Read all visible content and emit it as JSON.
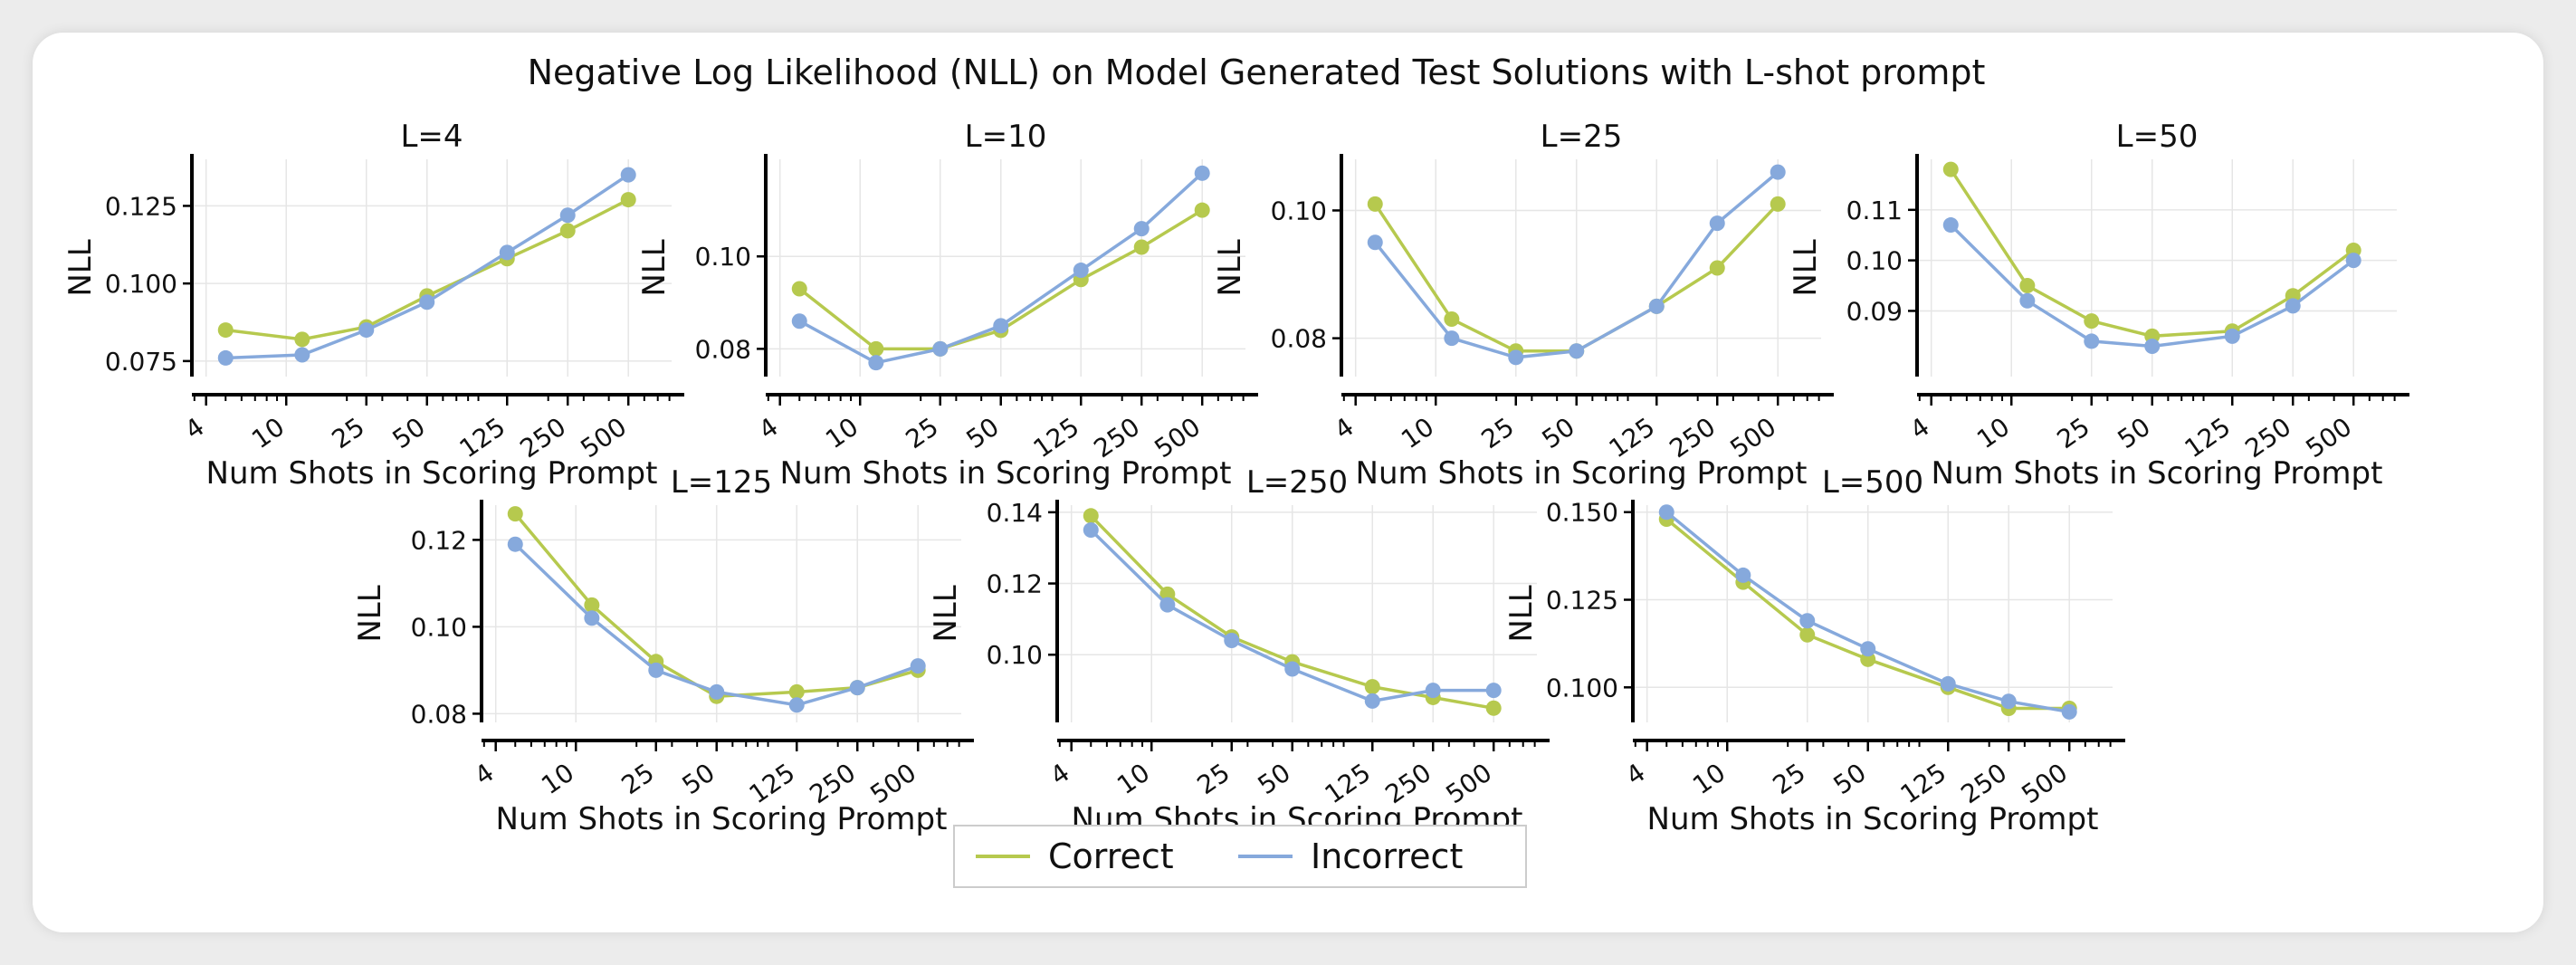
{
  "colors": {
    "correct": "#b6c94e",
    "incorrect": "#86a9dc",
    "grid": "#e6e6e6",
    "axis": "#000000"
  },
  "suptitle": "Negative Log Likelihood (NLL) on Model Generated Test Solutions with L-shot prompt",
  "legend": {
    "placement": "bottom-center",
    "entries": [
      "Correct",
      "Incorrect"
    ]
  },
  "chart_data": [
    {
      "type": "line",
      "title": "L=4",
      "xlabel": "Num Shots in Scoring Prompt",
      "ylabel": "NLL",
      "xscale": "log",
      "xticks": [
        4,
        10,
        25,
        50,
        125,
        250,
        500
      ],
      "xlim": [
        3.4,
        820
      ],
      "ylim": [
        0.07,
        0.14
      ],
      "yticks": [
        0.075,
        0.1,
        0.125
      ],
      "ytick_labels": [
        "0.075",
        "0.100",
        "0.125"
      ],
      "x": [
        5,
        12,
        25,
        50,
        125,
        250,
        500
      ],
      "series": [
        {
          "name": "Correct",
          "values": [
            0.085,
            0.082,
            0.086,
            0.096,
            0.108,
            0.117,
            0.127
          ]
        },
        {
          "name": "Incorrect",
          "values": [
            0.076,
            0.077,
            0.085,
            0.094,
            0.11,
            0.122,
            0.135
          ]
        }
      ],
      "grid": true
    },
    {
      "type": "line",
      "title": "L=10",
      "xlabel": "Num Shots in Scoring Prompt",
      "ylabel": "NLL",
      "xscale": "log",
      "xticks": [
        4,
        10,
        25,
        50,
        125,
        250,
        500
      ],
      "xlim": [
        3.4,
        820
      ],
      "ylim": [
        0.074,
        0.121
      ],
      "yticks": [
        0.08,
        0.1
      ],
      "ytick_labels": [
        "0.08",
        "0.10"
      ],
      "x": [
        5,
        12,
        25,
        50,
        125,
        250,
        500
      ],
      "series": [
        {
          "name": "Correct",
          "values": [
            0.093,
            0.08,
            0.08,
            0.084,
            0.095,
            0.102,
            0.11
          ]
        },
        {
          "name": "Incorrect",
          "values": [
            0.086,
            0.077,
            0.08,
            0.085,
            0.097,
            0.106,
            0.118
          ]
        }
      ],
      "grid": true
    },
    {
      "type": "line",
      "title": "L=25",
      "xlabel": "Num Shots in Scoring Prompt",
      "ylabel": "NLL",
      "xscale": "log",
      "xticks": [
        4,
        10,
        25,
        50,
        125,
        250,
        500
      ],
      "xlim": [
        3.4,
        820
      ],
      "ylim": [
        0.074,
        0.108
      ],
      "yticks": [
        0.08,
        0.1
      ],
      "ytick_labels": [
        "0.08",
        "0.10"
      ],
      "x": [
        5,
        12,
        25,
        50,
        125,
        250,
        500
      ],
      "series": [
        {
          "name": "Correct",
          "values": [
            0.101,
            0.083,
            0.078,
            0.078,
            0.085,
            0.091,
            0.101
          ]
        },
        {
          "name": "Incorrect",
          "values": [
            0.095,
            0.08,
            0.077,
            0.078,
            0.085,
            0.098,
            0.106
          ]
        }
      ],
      "grid": true
    },
    {
      "type": "line",
      "title": "L=50",
      "xlabel": "Num Shots in Scoring Prompt",
      "ylabel": "NLL",
      "xscale": "log",
      "xticks": [
        4,
        10,
        25,
        50,
        125,
        250,
        500
      ],
      "xlim": [
        3.4,
        820
      ],
      "ylim": [
        0.077,
        0.12
      ],
      "yticks": [
        0.09,
        0.1,
        0.11
      ],
      "ytick_labels": [
        "0.09",
        "0.10",
        "0.11"
      ],
      "x": [
        5,
        12,
        25,
        50,
        125,
        250,
        500
      ],
      "series": [
        {
          "name": "Correct",
          "values": [
            0.118,
            0.095,
            0.088,
            0.085,
            0.086,
            0.093,
            0.102
          ]
        },
        {
          "name": "Incorrect",
          "values": [
            0.107,
            0.092,
            0.084,
            0.083,
            0.085,
            0.091,
            0.1
          ]
        }
      ],
      "grid": true
    },
    {
      "type": "line",
      "title": "L=125",
      "xlabel": "Num Shots in Scoring Prompt",
      "ylabel": "NLL",
      "xscale": "log",
      "xticks": [
        4,
        10,
        25,
        50,
        125,
        250,
        500
      ],
      "xlim": [
        3.4,
        820
      ],
      "ylim": [
        0.078,
        0.128
      ],
      "yticks": [
        0.08,
        0.1,
        0.12
      ],
      "ytick_labels": [
        "0.08",
        "0.10",
        "0.12"
      ],
      "x": [
        5,
        12,
        25,
        50,
        125,
        250,
        500
      ],
      "series": [
        {
          "name": "Correct",
          "values": [
            0.126,
            0.105,
            0.092,
            0.084,
            0.085,
            0.086,
            0.09
          ]
        },
        {
          "name": "Incorrect",
          "values": [
            0.119,
            0.102,
            0.09,
            0.085,
            0.082,
            0.086,
            0.091
          ]
        }
      ],
      "grid": true
    },
    {
      "type": "line",
      "title": "L=250",
      "xlabel": "Num Shots in Scoring Prompt",
      "ylabel": "NLL",
      "xscale": "log",
      "xticks": [
        4,
        10,
        25,
        50,
        125,
        250,
        500
      ],
      "xlim": [
        3.4,
        820
      ],
      "ylim": [
        0.081,
        0.142
      ],
      "yticks": [
        0.1,
        0.12,
        0.14
      ],
      "ytick_labels": [
        "0.10",
        "0.12",
        "0.14"
      ],
      "x": [
        5,
        12,
        25,
        50,
        125,
        250,
        500
      ],
      "series": [
        {
          "name": "Correct",
          "values": [
            0.139,
            0.117,
            0.105,
            0.098,
            0.091,
            0.088,
            0.085
          ]
        },
        {
          "name": "Incorrect",
          "values": [
            0.135,
            0.114,
            0.104,
            0.096,
            0.087,
            0.09,
            0.09
          ]
        }
      ],
      "grid": true
    },
    {
      "type": "line",
      "title": "L=500",
      "xlabel": "Num Shots in Scoring Prompt",
      "ylabel": "NLL",
      "xscale": "log",
      "xticks": [
        4,
        10,
        25,
        50,
        125,
        250,
        500
      ],
      "xlim": [
        3.4,
        820
      ],
      "ylim": [
        0.09,
        0.152
      ],
      "yticks": [
        0.1,
        0.125,
        0.15
      ],
      "ytick_labels": [
        "0.100",
        "0.125",
        "0.150"
      ],
      "x": [
        5,
        12,
        25,
        50,
        125,
        250,
        500
      ],
      "series": [
        {
          "name": "Correct",
          "values": [
            0.148,
            0.13,
            0.115,
            0.108,
            0.1,
            0.094,
            0.094
          ]
        },
        {
          "name": "Incorrect",
          "values": [
            0.15,
            0.132,
            0.119,
            0.111,
            0.101,
            0.096,
            0.093
          ]
        }
      ],
      "grid": true
    }
  ]
}
